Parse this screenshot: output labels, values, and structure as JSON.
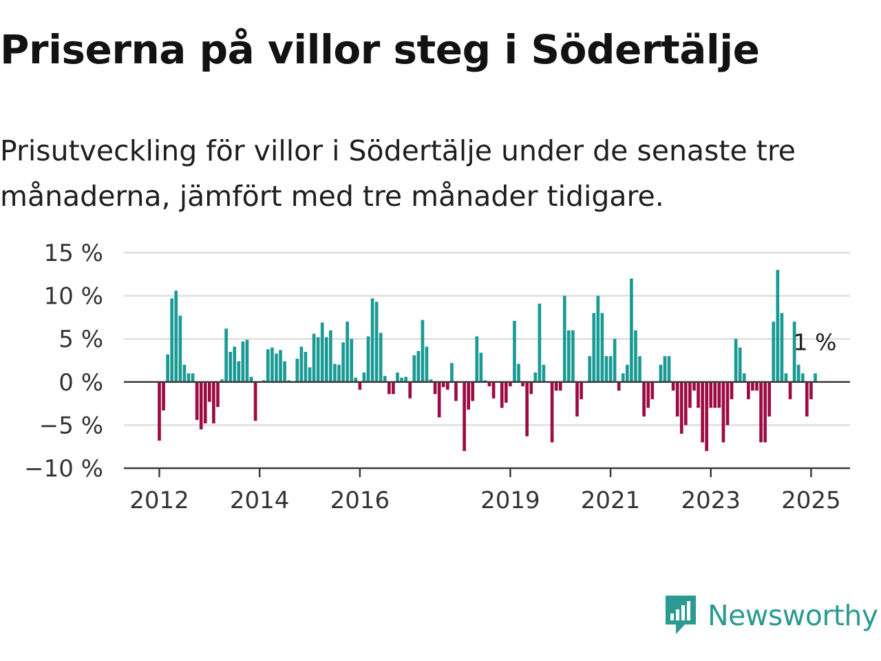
{
  "title": "Priserna på villor steg i Södertälje",
  "subtitle": "Prisutveckling för villor i Södertälje under de senaste tre månaderna, jämfört med tre månader tidigare.",
  "brand": {
    "name": "Newsworthy",
    "icon": "newsworthy-logo-icon",
    "color": "#2b9a90"
  },
  "colors": {
    "positive": "#1a9a94",
    "negative": "#9c0b43",
    "grid": "#dedede",
    "axis": "#3a3a3a"
  },
  "chart_data": {
    "type": "bar",
    "ylim": [
      -10,
      15
    ],
    "yticks": [
      15,
      10,
      5,
      0,
      -5,
      -10
    ],
    "ytick_labels": [
      "15 %",
      "10 %",
      "5 %",
      "0 %",
      "−5 %",
      "−10 %"
    ],
    "xticks": [
      {
        "label": "2012",
        "x": "2012-01"
      },
      {
        "label": "2014",
        "x": "2014-01"
      },
      {
        "label": "2016",
        "x": "2016-01"
      },
      {
        "label": "2019",
        "x": "2019-01"
      },
      {
        "label": "2021",
        "x": "2021-01"
      },
      {
        "label": "2023",
        "x": "2023-01"
      },
      {
        "label": "2025",
        "x": "2025-01"
      }
    ],
    "grid": true,
    "last_label": "1 %",
    "data": [
      {
        "x": "2012-01",
        "value": -6.8
      },
      {
        "x": "2012-02",
        "value": -3.3
      },
      {
        "x": "2012-03",
        "value": 3.2
      },
      {
        "x": "2012-04",
        "value": 9.7
      },
      {
        "x": "2012-05",
        "value": 10.6
      },
      {
        "x": "2012-06",
        "value": 7.7
      },
      {
        "x": "2012-07",
        "value": 2.0
      },
      {
        "x": "2012-08",
        "value": 1.0
      },
      {
        "x": "2012-09",
        "value": 1.0
      },
      {
        "x": "2012-10",
        "value": -4.4
      },
      {
        "x": "2012-11",
        "value": -5.5
      },
      {
        "x": "2012-12",
        "value": -4.8
      },
      {
        "x": "2013-01",
        "value": -2.3
      },
      {
        "x": "2013-02",
        "value": -4.8
      },
      {
        "x": "2013-03",
        "value": -2.9
      },
      {
        "x": "2013-04",
        "value": 0.3
      },
      {
        "x": "2013-05",
        "value": 6.2
      },
      {
        "x": "2013-06",
        "value": 3.5
      },
      {
        "x": "2013-07",
        "value": 4.1
      },
      {
        "x": "2013-08",
        "value": 2.4
      },
      {
        "x": "2013-09",
        "value": 4.7
      },
      {
        "x": "2013-10",
        "value": 4.9
      },
      {
        "x": "2013-11",
        "value": 0.6
      },
      {
        "x": "2013-12",
        "value": -4.5
      },
      {
        "x": "2014-01",
        "value": 0.0
      },
      {
        "x": "2014-02",
        "value": 0.2
      },
      {
        "x": "2014-03",
        "value": 3.8
      },
      {
        "x": "2014-04",
        "value": 4.0
      },
      {
        "x": "2014-05",
        "value": 3.3
      },
      {
        "x": "2014-06",
        "value": 3.7
      },
      {
        "x": "2014-07",
        "value": 2.4
      },
      {
        "x": "2014-08",
        "value": 0.2
      },
      {
        "x": "2014-09",
        "value": 0.0
      },
      {
        "x": "2014-10",
        "value": 2.7
      },
      {
        "x": "2014-11",
        "value": 4.1
      },
      {
        "x": "2014-12",
        "value": 3.5
      },
      {
        "x": "2015-01",
        "value": 1.7
      },
      {
        "x": "2015-02",
        "value": 5.6
      },
      {
        "x": "2015-03",
        "value": 5.2
      },
      {
        "x": "2015-04",
        "value": 6.9
      },
      {
        "x": "2015-05",
        "value": 5.2
      },
      {
        "x": "2015-06",
        "value": 6.0
      },
      {
        "x": "2015-07",
        "value": 2.1
      },
      {
        "x": "2015-08",
        "value": 2.0
      },
      {
        "x": "2015-09",
        "value": 4.6
      },
      {
        "x": "2015-10",
        "value": 7.0
      },
      {
        "x": "2015-11",
        "value": 5.0
      },
      {
        "x": "2015-12",
        "value": 0.5
      },
      {
        "x": "2016-01",
        "value": -0.9
      },
      {
        "x": "2016-02",
        "value": 1.1
      },
      {
        "x": "2016-03",
        "value": 5.3
      },
      {
        "x": "2016-04",
        "value": 9.7
      },
      {
        "x": "2016-05",
        "value": 9.3
      },
      {
        "x": "2016-06",
        "value": 5.7
      },
      {
        "x": "2016-07",
        "value": 0.7
      },
      {
        "x": "2016-08",
        "value": -1.4
      },
      {
        "x": "2016-09",
        "value": -1.4
      },
      {
        "x": "2016-10",
        "value": 1.1
      },
      {
        "x": "2016-11",
        "value": 0.5
      },
      {
        "x": "2016-12",
        "value": 0.6
      },
      {
        "x": "2017-01",
        "value": -1.9
      },
      {
        "x": "2017-02",
        "value": 3.1
      },
      {
        "x": "2017-03",
        "value": 3.6
      },
      {
        "x": "2017-04",
        "value": 7.2
      },
      {
        "x": "2017-05",
        "value": 4.1
      },
      {
        "x": "2017-06",
        "value": 0.3
      },
      {
        "x": "2017-07",
        "value": -1.4
      },
      {
        "x": "2017-08",
        "value": -4.1
      },
      {
        "x": "2017-09",
        "value": -0.6
      },
      {
        "x": "2017-10",
        "value": -0.9
      },
      {
        "x": "2017-11",
        "value": 2.2
      },
      {
        "x": "2017-12",
        "value": -2.2
      },
      {
        "x": "2018-01",
        "value": 0.0
      },
      {
        "x": "2018-02",
        "value": -8.0
      },
      {
        "x": "2018-03",
        "value": -3.2
      },
      {
        "x": "2018-04",
        "value": -2.2
      },
      {
        "x": "2018-05",
        "value": 5.3
      },
      {
        "x": "2018-06",
        "value": 3.4
      },
      {
        "x": "2018-07",
        "value": 0.2
      },
      {
        "x": "2018-08",
        "value": -0.5
      },
      {
        "x": "2018-09",
        "value": -1.9
      },
      {
        "x": "2018-10",
        "value": 0.0
      },
      {
        "x": "2018-11",
        "value": -3.0
      },
      {
        "x": "2018-12",
        "value": -2.4
      },
      {
        "x": "2019-01",
        "value": -0.5
      },
      {
        "x": "2019-02",
        "value": 7.1
      },
      {
        "x": "2019-03",
        "value": 2.1
      },
      {
        "x": "2019-04",
        "value": -0.5
      },
      {
        "x": "2019-05",
        "value": -6.3
      },
      {
        "x": "2019-06",
        "value": -1.4
      },
      {
        "x": "2019-07",
        "value": 1.1
      },
      {
        "x": "2019-08",
        "value": 9.1
      },
      {
        "x": "2019-09",
        "value": 2.0
      },
      {
        "x": "2019-10",
        "value": 0.0
      },
      {
        "x": "2019-11",
        "value": -7.0
      },
      {
        "x": "2019-12",
        "value": -1.0
      },
      {
        "x": "2020-01",
        "value": -1.0
      },
      {
        "x": "2020-02",
        "value": 10.0
      },
      {
        "x": "2020-03",
        "value": 6.0
      },
      {
        "x": "2020-04",
        "value": 6.0
      },
      {
        "x": "2020-05",
        "value": -4.0
      },
      {
        "x": "2020-06",
        "value": -2.0
      },
      {
        "x": "2020-07",
        "value": 0.0
      },
      {
        "x": "2020-08",
        "value": 3.0
      },
      {
        "x": "2020-09",
        "value": 8.0
      },
      {
        "x": "2020-10",
        "value": 10.0
      },
      {
        "x": "2020-11",
        "value": 8.0
      },
      {
        "x": "2020-12",
        "value": 3.0
      },
      {
        "x": "2021-01",
        "value": 3.0
      },
      {
        "x": "2021-02",
        "value": 5.0
      },
      {
        "x": "2021-03",
        "value": -1.0
      },
      {
        "x": "2021-04",
        "value": 1.0
      },
      {
        "x": "2021-05",
        "value": 2.0
      },
      {
        "x": "2021-06",
        "value": 12.0
      },
      {
        "x": "2021-07",
        "value": 6.0
      },
      {
        "x": "2021-08",
        "value": 3.0
      },
      {
        "x": "2021-09",
        "value": -4.0
      },
      {
        "x": "2021-10",
        "value": -3.0
      },
      {
        "x": "2021-11",
        "value": -2.0
      },
      {
        "x": "2021-12",
        "value": 0.0
      },
      {
        "x": "2022-01",
        "value": 2.0
      },
      {
        "x": "2022-02",
        "value": 3.0
      },
      {
        "x": "2022-03",
        "value": 3.0
      },
      {
        "x": "2022-04",
        "value": -1.0
      },
      {
        "x": "2022-05",
        "value": -4.0
      },
      {
        "x": "2022-06",
        "value": -6.0
      },
      {
        "x": "2022-07",
        "value": -5.0
      },
      {
        "x": "2022-08",
        "value": -3.0
      },
      {
        "x": "2022-09",
        "value": -1.0
      },
      {
        "x": "2022-10",
        "value": -3.0
      },
      {
        "x": "2022-11",
        "value": -7.0
      },
      {
        "x": "2022-12",
        "value": -8.0
      },
      {
        "x": "2023-01",
        "value": -3.0
      },
      {
        "x": "2023-02",
        "value": -3.0
      },
      {
        "x": "2023-03",
        "value": -3.0
      },
      {
        "x": "2023-04",
        "value": -7.0
      },
      {
        "x": "2023-05",
        "value": -5.0
      },
      {
        "x": "2023-06",
        "value": -2.0
      },
      {
        "x": "2023-07",
        "value": 5.0
      },
      {
        "x": "2023-08",
        "value": 4.0
      },
      {
        "x": "2023-09",
        "value": 1.0
      },
      {
        "x": "2023-10",
        "value": -2.0
      },
      {
        "x": "2023-11",
        "value": -1.0
      },
      {
        "x": "2023-12",
        "value": -1.0
      },
      {
        "x": "2024-01",
        "value": -7.0
      },
      {
        "x": "2024-02",
        "value": -7.0
      },
      {
        "x": "2024-03",
        "value": -4.0
      },
      {
        "x": "2024-04",
        "value": 7.0
      },
      {
        "x": "2024-05",
        "value": 13.0
      },
      {
        "x": "2024-06",
        "value": 8.0
      },
      {
        "x": "2024-07",
        "value": 1.0
      },
      {
        "x": "2024-08",
        "value": -2.0
      },
      {
        "x": "2024-09",
        "value": 7.0
      },
      {
        "x": "2024-10",
        "value": 2.0
      },
      {
        "x": "2024-11",
        "value": 1.0
      },
      {
        "x": "2024-12",
        "value": -4.0
      },
      {
        "x": "2025-01",
        "value": -2.0
      },
      {
        "x": "2025-02",
        "value": 1.0
      }
    ]
  }
}
